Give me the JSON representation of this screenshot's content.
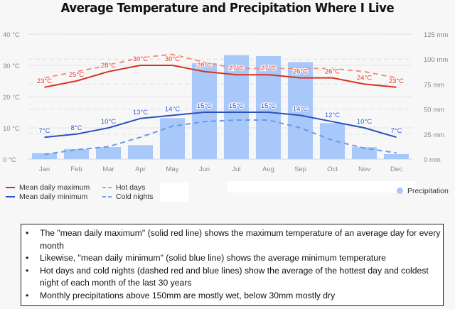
{
  "chart_data": {
    "type": "bar",
    "title": "Average Temperature and Precipitation Where I Live",
    "categories": [
      "Jan",
      "Feb",
      "Mar",
      "Apr",
      "May",
      "Jun",
      "Jul",
      "Aug",
      "Sep",
      "Oct",
      "Nov",
      "Dec"
    ],
    "y_left": {
      "ticks": [
        "0 °C",
        "10 °C",
        "20 °C",
        "30 °C",
        "40 °C"
      ],
      "range": [
        0,
        40
      ],
      "unit": "°C"
    },
    "y_right": {
      "ticks": [
        "0 mm",
        "25 mm",
        "50 mm",
        "75 mm",
        "100 mm",
        "125 mm"
      ],
      "range": [
        0,
        125
      ],
      "unit": "mm"
    },
    "grid": true,
    "series": [
      {
        "name": "Precipitation",
        "type": "bar",
        "axis": "right",
        "color": "#a8c8fa",
        "values": [
          6,
          10,
          12,
          14,
          41,
          96,
          104,
          103,
          97,
          36,
          12,
          5
        ]
      },
      {
        "name": "Mean daily maximum",
        "type": "line",
        "axis": "left",
        "color": "#d8321e",
        "dashed": false,
        "values": [
          23,
          25,
          28,
          30,
          30,
          28,
          27,
          27,
          26,
          26,
          24,
          23
        ],
        "labels": [
          "23°C",
          "25°C",
          "28°C",
          "30°C",
          "30°C",
          "28°C",
          "27°C",
          "27°C",
          "26°C",
          "26°C",
          "24°C",
          "23°C"
        ]
      },
      {
        "name": "Mean daily minimum",
        "type": "line",
        "axis": "left",
        "color": "#2a52be",
        "dashed": false,
        "values": [
          7,
          8,
          10,
          13,
          14,
          15,
          15,
          15,
          14,
          12,
          10,
          7
        ],
        "labels": [
          "7°C",
          "8°C",
          "10°C",
          "13°C",
          "14°C",
          "15°C",
          "15°C",
          "15°C",
          "14°C",
          "12°C",
          "10°C",
          "7°C"
        ]
      },
      {
        "name": "Hot days",
        "type": "line",
        "axis": "left",
        "color": "#f4907e",
        "dashed": true,
        "values": [
          26,
          28,
          30,
          32.5,
          33.5,
          31,
          29,
          29,
          29,
          29,
          28,
          26
        ]
      },
      {
        "name": "Cold nights",
        "type": "line",
        "axis": "left",
        "color": "#6a9be6",
        "dashed": true,
        "values": [
          1.5,
          3,
          4,
          7,
          10.5,
          12,
          12.5,
          12.5,
          10,
          6,
          3.5,
          2
        ]
      }
    ],
    "legend": {
      "placement": "bottom",
      "items": [
        "Mean daily maximum",
        "Mean daily minimum",
        "Hot days",
        "Cold nights",
        "Precipitation"
      ]
    }
  },
  "notes": [
    "The \"mean daily maximum\" (solid red line) shows the maximum temperature of an average day for every month",
    "Likewise, \"mean daily minimum\" (solid blue line) shows the average minimum temperature",
    "Hot days and cold nights (dashed red and blue lines) show the average of the hottest day and coldest night of each month of the last 30 years",
    "Monthly precipitations above 150mm are mostly wet, below 30mm mostly dry"
  ]
}
